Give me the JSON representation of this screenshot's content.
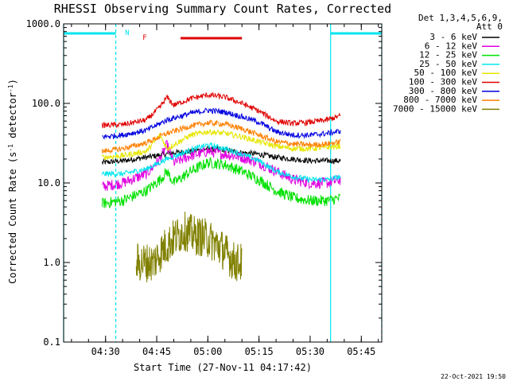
{
  "chart_data": {
    "type": "line",
    "title": "RHESSI Observing Summary Count Rates, Corrected",
    "xlabel": "Start Time (27-Nov-11 04:17:42)",
    "ylabel_main": "Corrected Count Rate (s",
    "ylabel_sup1": "-1",
    "ylabel_mid": " detector",
    "ylabel_sup2": "-1",
    "ylabel_end": ")",
    "y_scale": "log",
    "ylim": [
      0.1,
      1000
    ],
    "xlim": [
      "04:17:42",
      "05:51:00"
    ],
    "x_ticks": [
      "04:30",
      "04:45",
      "05:00",
      "05:15",
      "05:30",
      "05:45"
    ],
    "y_ticks": [
      "0.1",
      "1.0",
      "10.0",
      "100.0",
      "1000.0"
    ],
    "legend_header": [
      "Det 1,3,4,5,6,9,",
      "Att 0"
    ],
    "legend_position": "right",
    "timestamp": "22-Oct-2021 19:50",
    "flags": [
      {
        "label": "N",
        "color": "#00e5ee",
        "segments": [
          [
            "04:17:42",
            "04:33:00"
          ],
          [
            "05:36:00",
            "05:51:00"
          ]
        ]
      },
      {
        "label": "F",
        "color": "#e00000",
        "segments": [
          [
            "04:52:00",
            "05:10:00"
          ]
        ]
      }
    ],
    "night_boundaries": [
      "04:17:42",
      "04:33:00",
      "05:36:00",
      "05:51:00"
    ],
    "series": [
      {
        "name": "3 - 6 keV",
        "color": "#000000",
        "points": [
          [
            "04:29",
            18
          ],
          [
            "04:35",
            19
          ],
          [
            "04:42",
            21
          ],
          [
            "04:50",
            24
          ],
          [
            "04:55",
            25
          ],
          [
            "05:00",
            27
          ],
          [
            "05:05",
            26
          ],
          [
            "05:10",
            24
          ],
          [
            "05:15",
            23
          ],
          [
            "05:20",
            21
          ],
          [
            "05:25",
            20
          ],
          [
            "05:30",
            19
          ],
          [
            "05:35",
            19
          ],
          [
            "05:39",
            19
          ]
        ]
      },
      {
        "name": "6 - 12 keV",
        "color": "#e000e0",
        "points": [
          [
            "04:29",
            9
          ],
          [
            "04:35",
            10
          ],
          [
            "04:42",
            13
          ],
          [
            "04:46",
            20
          ],
          [
            "04:48",
            30
          ],
          [
            "04:50",
            18
          ],
          [
            "04:55",
            22
          ],
          [
            "05:00",
            25
          ],
          [
            "05:05",
            23
          ],
          [
            "05:10",
            21
          ],
          [
            "05:15",
            18
          ],
          [
            "05:20",
            14
          ],
          [
            "05:25",
            11
          ],
          [
            "05:30",
            10
          ],
          [
            "05:35",
            10
          ],
          [
            "05:39",
            11
          ]
        ]
      },
      {
        "name": "12 - 25 keV",
        "color": "#00e000",
        "points": [
          [
            "04:29",
            5.5
          ],
          [
            "04:35",
            6
          ],
          [
            "04:42",
            8
          ],
          [
            "04:46",
            11
          ],
          [
            "04:48",
            14
          ],
          [
            "04:50",
            10
          ],
          [
            "04:55",
            14
          ],
          [
            "05:00",
            18
          ],
          [
            "05:05",
            17
          ],
          [
            "05:10",
            14
          ],
          [
            "05:15",
            11
          ],
          [
            "05:20",
            8
          ],
          [
            "05:25",
            6.5
          ],
          [
            "05:30",
            6
          ],
          [
            "05:35",
            6
          ],
          [
            "05:39",
            6.5
          ]
        ]
      },
      {
        "name": "25 - 50 keV",
        "color": "#00e5ee",
        "points": [
          [
            "04:29",
            13
          ],
          [
            "04:35",
            13
          ],
          [
            "04:42",
            15
          ],
          [
            "04:48",
            20
          ],
          [
            "04:55",
            26
          ],
          [
            "05:00",
            30
          ],
          [
            "05:05",
            27
          ],
          [
            "05:10",
            23
          ],
          [
            "05:15",
            19
          ],
          [
            "05:20",
            14
          ],
          [
            "05:25",
            12
          ],
          [
            "05:30",
            11
          ],
          [
            "05:35",
            11
          ],
          [
            "05:39",
            12
          ]
        ]
      },
      {
        "name": "50 - 100 keV",
        "color": "#e6e600",
        "points": [
          [
            "04:29",
            21
          ],
          [
            "04:35",
            22
          ],
          [
            "04:42",
            25
          ],
          [
            "04:46",
            40
          ],
          [
            "04:48",
            27
          ],
          [
            "04:55",
            40
          ],
          [
            "05:00",
            44
          ],
          [
            "05:05",
            42
          ],
          [
            "05:10",
            38
          ],
          [
            "05:15",
            33
          ],
          [
            "05:20",
            29
          ],
          [
            "05:25",
            27
          ],
          [
            "05:30",
            27
          ],
          [
            "05:35",
            28
          ],
          [
            "05:39",
            29
          ]
        ]
      },
      {
        "name": "100 - 300 keV",
        "color": "#e00000",
        "points": [
          [
            "04:29",
            53
          ],
          [
            "04:35",
            54
          ],
          [
            "04:42",
            62
          ],
          [
            "04:46",
            90
          ],
          [
            "04:48",
            120
          ],
          [
            "04:50",
            95
          ],
          [
            "04:55",
            115
          ],
          [
            "05:00",
            128
          ],
          [
            "05:05",
            120
          ],
          [
            "05:10",
            100
          ],
          [
            "05:15",
            80
          ],
          [
            "05:20",
            60
          ],
          [
            "05:25",
            56
          ],
          [
            "05:30",
            58
          ],
          [
            "05:35",
            62
          ],
          [
            "05:39",
            70
          ]
        ]
      },
      {
        "name": "300 - 800 keV",
        "color": "#0000e0",
        "points": [
          [
            "04:29",
            38
          ],
          [
            "04:35",
            40
          ],
          [
            "04:42",
            46
          ],
          [
            "04:48",
            62
          ],
          [
            "04:55",
            75
          ],
          [
            "05:00",
            82
          ],
          [
            "05:05",
            78
          ],
          [
            "05:10",
            68
          ],
          [
            "05:15",
            58
          ],
          [
            "05:20",
            44
          ],
          [
            "05:25",
            40
          ],
          [
            "05:30",
            40
          ],
          [
            "05:35",
            42
          ],
          [
            "05:39",
            45
          ]
        ]
      },
      {
        "name": "800 - 7000 keV",
        "color": "#ff8000",
        "points": [
          [
            "04:29",
            25
          ],
          [
            "04:35",
            27
          ],
          [
            "04:42",
            32
          ],
          [
            "04:48",
            42
          ],
          [
            "04:55",
            52
          ],
          [
            "05:00",
            57
          ],
          [
            "05:05",
            55
          ],
          [
            "05:10",
            48
          ],
          [
            "05:15",
            40
          ],
          [
            "05:20",
            33
          ],
          [
            "05:25",
            31
          ],
          [
            "05:30",
            30
          ],
          [
            "05:35",
            31
          ],
          [
            "05:39",
            33
          ]
        ]
      },
      {
        "name": "7000 - 15000 keV",
        "color": "#808000",
        "points": [
          [
            "04:39",
            1.0
          ],
          [
            "04:44",
            1.0
          ],
          [
            "04:47",
            1.5
          ],
          [
            "04:50",
            2.0
          ],
          [
            "04:53",
            2.5
          ],
          [
            "04:56",
            2.2
          ],
          [
            "05:00",
            2.0
          ],
          [
            "05:04",
            1.5
          ],
          [
            "05:08",
            1.0
          ],
          [
            "05:10",
            1.0
          ]
        ]
      }
    ]
  }
}
